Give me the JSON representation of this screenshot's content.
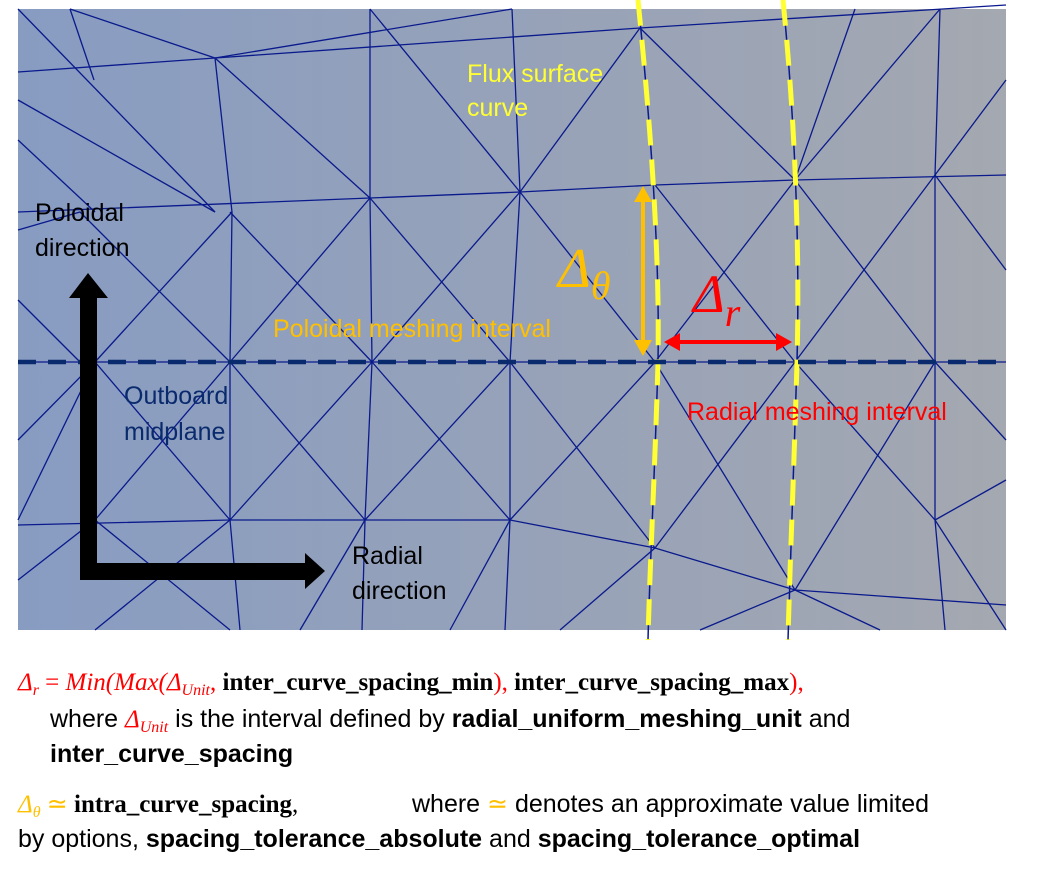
{
  "labels": {
    "flux_surface_line1": "Flux surface",
    "flux_surface_line2": "curve",
    "poloidal_dir_line1": "Poloidal",
    "poloidal_dir_line2": "direction",
    "outboard_line1": "Outboard",
    "outboard_line2": "midplane",
    "radial_dir_line1": "Radial",
    "radial_dir_line2": "direction",
    "poloidal_interval": "Poloidal meshing interval",
    "radial_interval": "Radial meshing interval",
    "delta_theta_symbol": "Δ",
    "delta_theta_sub": "θ",
    "delta_r_symbol": "Δ",
    "delta_r_sub": "r"
  },
  "equations": {
    "eq1": {
      "lhs_delta": "Δ",
      "lhs_sub": "r",
      "eq_sign": " = ",
      "min_open": "Min(Max(Δ",
      "unit_sub": "Unit",
      "comma1": ", ",
      "param_min": "inter_curve_spacing_min",
      "close1": "), ",
      "param_max": "inter_curve_spacing_max",
      "close2": "),"
    },
    "line2": {
      "text_a": "where ",
      "delta": "Δ",
      "unit_sub": "Unit",
      "text_b": " is the interval defined by ",
      "param": "radial_uniform_meshing_unit",
      "text_c": " and"
    },
    "line3": {
      "param": "inter_curve_spacing"
    },
    "eq2": {
      "delta": "Δ",
      "sub": "θ",
      "approx": " ≃ ",
      "param": "intra_curve_spacing",
      "comma": ",",
      "text_a": "where ",
      "approx2": "≃",
      "text_b": " denotes an approximate value limited"
    },
    "line5": {
      "text_a": "by options, ",
      "param1": "spacing_tolerance_absolute",
      "text_b": " and ",
      "param2": "spacing_tolerance_optimal"
    }
  },
  "colors": {
    "mesh_line": "#0a1a8c",
    "midplane": "#0a2a6e",
    "flux_curve": "#ffff33",
    "poloidal": "#ffc000",
    "radial": "#ff0000",
    "axis_arrow": "#000000",
    "outboard_text": "#0a2a6e",
    "bg_left": "#8a9ec2",
    "bg_right": "#a2a8b0"
  }
}
